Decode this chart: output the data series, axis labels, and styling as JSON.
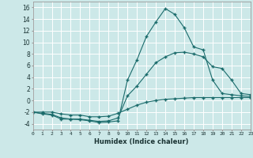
{
  "xlabel": "Humidex (Indice chaleur)",
  "ylabel": "",
  "background_color": "#cce8e8",
  "line_color": "#1a6b6b",
  "grid_color": "#b8d8d8",
  "x_values": [
    0,
    1,
    2,
    3,
    4,
    5,
    6,
    7,
    8,
    9,
    10,
    11,
    12,
    13,
    14,
    15,
    16,
    17,
    18,
    19,
    20,
    21,
    22,
    23
  ],
  "line1": [
    -2,
    -2.3,
    -2.5,
    -3.2,
    -3.2,
    -3.3,
    -3.5,
    -3.8,
    -3.7,
    -3.5,
    3.5,
    7.0,
    11.0,
    13.5,
    15.8,
    14.8,
    12.5,
    9.2,
    8.7,
    3.5,
    1.2,
    1.0,
    0.8,
    0.7
  ],
  "line2": [
    -2,
    -2.2,
    -2.4,
    -3.0,
    -3.2,
    -3.2,
    -3.4,
    -3.6,
    -3.5,
    -3.0,
    0.8,
    2.5,
    4.5,
    6.5,
    7.5,
    8.2,
    8.3,
    8.0,
    7.5,
    5.8,
    5.5,
    3.5,
    1.2,
    1.0
  ],
  "line3": [
    -2,
    -2.0,
    -2.0,
    -2.3,
    -2.5,
    -2.5,
    -2.8,
    -2.8,
    -2.7,
    -2.2,
    -1.5,
    -0.8,
    -0.3,
    0.0,
    0.2,
    0.3,
    0.4,
    0.5,
    0.5,
    0.5,
    0.5,
    0.5,
    0.5,
    0.5
  ],
  "ylim": [
    -5,
    17
  ],
  "xlim": [
    0,
    23
  ],
  "yticks": [
    -4,
    -2,
    0,
    2,
    4,
    6,
    8,
    10,
    12,
    14,
    16
  ],
  "xticks": [
    0,
    1,
    2,
    3,
    4,
    5,
    6,
    7,
    8,
    9,
    10,
    11,
    12,
    13,
    14,
    15,
    16,
    17,
    18,
    19,
    20,
    21,
    22,
    23
  ]
}
